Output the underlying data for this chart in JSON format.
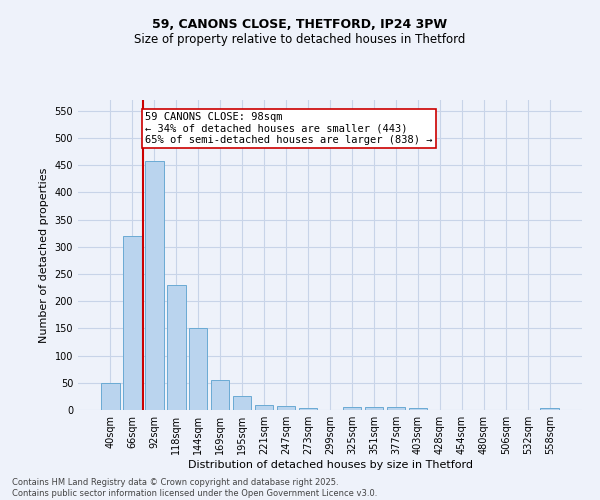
{
  "title_line1": "59, CANONS CLOSE, THETFORD, IP24 3PW",
  "title_line2": "Size of property relative to detached houses in Thetford",
  "xlabel": "Distribution of detached houses by size in Thetford",
  "ylabel": "Number of detached properties",
  "categories": [
    "40sqm",
    "66sqm",
    "92sqm",
    "118sqm",
    "144sqm",
    "169sqm",
    "195sqm",
    "221sqm",
    "247sqm",
    "273sqm",
    "299sqm",
    "325sqm",
    "351sqm",
    "377sqm",
    "403sqm",
    "428sqm",
    "454sqm",
    "480sqm",
    "506sqm",
    "532sqm",
    "558sqm"
  ],
  "values": [
    50,
    320,
    458,
    230,
    150,
    56,
    25,
    10,
    8,
    3,
    0,
    5,
    6,
    6,
    3,
    0,
    0,
    0,
    0,
    0,
    3
  ],
  "bar_color": "#bad4ee",
  "bar_edge_color": "#6aaad4",
  "annotation_line1": "59 CANONS CLOSE: 98sqm",
  "annotation_line2": "← 34% of detached houses are smaller (443)",
  "annotation_line3": "65% of semi-detached houses are larger (838) →",
  "annotation_box_facecolor": "#ffffff",
  "annotation_box_edgecolor": "#cc0000",
  "red_line_color": "#cc0000",
  "red_line_x": 1.5,
  "ylim": [
    0,
    570
  ],
  "yticks": [
    0,
    50,
    100,
    150,
    200,
    250,
    300,
    350,
    400,
    450,
    500,
    550
  ],
  "footer_line1": "Contains HM Land Registry data © Crown copyright and database right 2025.",
  "footer_line2": "Contains public sector information licensed under the Open Government Licence v3.0.",
  "bg_color": "#eef2fa",
  "grid_color": "#c8d4e8",
  "title1_fontsize": 9,
  "title2_fontsize": 8.5,
  "ylabel_fontsize": 8,
  "xlabel_fontsize": 8,
  "tick_fontsize": 7,
  "footer_fontsize": 6,
  "ann_fontsize": 7.5
}
